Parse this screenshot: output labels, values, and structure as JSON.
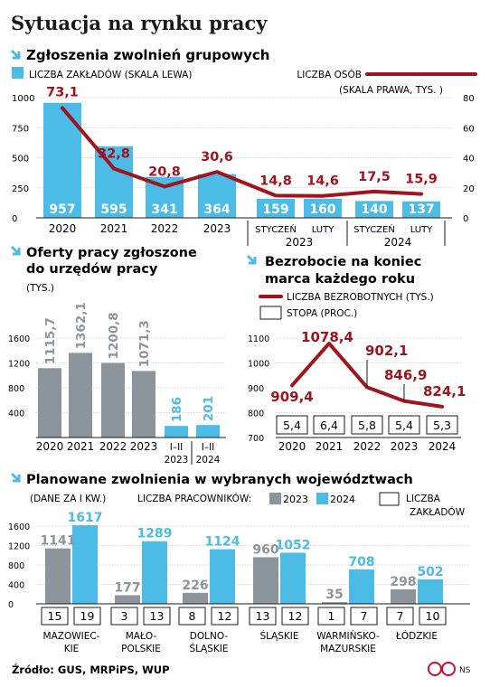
{
  "header": {
    "title": "Sytuacja na rynku pracy"
  },
  "colors": {
    "blue": "#4cbbe6",
    "gray": "#8d959c",
    "red": "#a0141e",
    "text": "#1a1a1a",
    "arrow": "#4cbbe6"
  },
  "section1": {
    "title": "Zgłoszenia zwolnień grupowych",
    "legend_left": "LICZBA ZAKŁADÓW (SKALA LEWA)",
    "legend_right_1": "LICZBA OSÓB",
    "legend_right_2": "(SKALA PRAWA, TYS. )",
    "y_left_ticks": [
      "1000",
      "750",
      "500",
      "250",
      "0"
    ],
    "y_right_ticks": [
      "80",
      "60",
      "40",
      "20",
      "0"
    ],
    "x_labels": [
      "2020",
      "2021",
      "2022",
      "2023",
      "STYCZEŃ",
      "LUTY",
      "STYCZEŃ",
      "LUTY"
    ],
    "group_labels": [
      "2023",
      "2024"
    ]
  },
  "section2": {
    "title_1": "Oferty pracy zgłoszone",
    "title_2": "do urzędów pracy",
    "unit": "(TYS.)",
    "y_ticks": [
      "1600",
      "1200",
      "800",
      "400",
      "0"
    ],
    "x_labels_1": [
      "2020",
      "2021",
      "2022",
      "2023",
      "I–II",
      "I–II"
    ],
    "x_labels_2": [
      "",
      "",
      "",
      "",
      "2023",
      "2024"
    ]
  },
  "section3": {
    "title_1": "Bezrobocie na koniec",
    "title_2": "marca każdego roku",
    "legend_line": "LICZBA BEZROBOTNYCH (TYS.)",
    "legend_box": "STOPA (PROC.)",
    "y_ticks": [
      "1100",
      "1000",
      "900",
      "800",
      "700"
    ],
    "x_labels": [
      "2020",
      "2021",
      "2022",
      "2023",
      "2024"
    ]
  },
  "section4": {
    "title": "Planowane zwolnienia w wybranych województwach",
    "unit": "(DANE ZA I KW.)",
    "legend_workers": "LICZBA PRACOWNIKÓW:",
    "legend_2023": "2023",
    "legend_2024": "2024",
    "legend_plants_1": "LICZBA",
    "legend_plants_2": "ZAKŁADÓW",
    "y_ticks": [
      "1600",
      "1200",
      "800",
      "400",
      "0"
    ],
    "region_labels_1": [
      "MAZOWIEC-",
      "MAŁO-",
      "DOLNO-",
      "ŚLĄSKIE",
      "WARMIŃSKO-",
      "ŁÓDZKIE"
    ],
    "region_labels_2": [
      "KIE",
      "POLSKIE",
      "ŚLĄSKIE",
      "",
      "MAZURSKIE",
      ""
    ]
  },
  "footer": {
    "source": "Źródło: GUS, MRPiPS, WUP",
    "brand": "NS"
  },
  "chart_data": [
    {
      "type": "bar",
      "title": "Zgłoszenia zwolnień grupowych",
      "categories": [
        "2020",
        "2021",
        "2022",
        "2023",
        "STYCZEŃ 2023",
        "LUTY 2023",
        "STYCZEŃ 2024",
        "LUTY 2024"
      ],
      "series": [
        {
          "name": "LICZBA ZAKŁADÓW (SKALA LEWA)",
          "type": "bar",
          "values": [
            957,
            595,
            341,
            364,
            159,
            160,
            140,
            137
          ]
        },
        {
          "name": "LICZBA OSÓB (SKALA PRAWA, TYS. )",
          "type": "line",
          "values": [
            73.1,
            32.8,
            20.8,
            30.6,
            14.8,
            14.6,
            17.5,
            15.9
          ]
        }
      ],
      "value_labels_bar": [
        "957",
        "595",
        "341",
        "364",
        "159",
        "160",
        "140",
        "137"
      ],
      "value_labels_line": [
        "73,1",
        "32,8",
        "20,8",
        "30,6",
        "14,8",
        "14,6",
        "17,5",
        "15,9"
      ],
      "ylim_left": [
        0,
        1000
      ],
      "ylim_right": [
        0,
        80
      ]
    },
    {
      "type": "bar",
      "title": "Oferty pracy zgłoszone do urzędów pracy",
      "ylabel": "(TYS.)",
      "categories": [
        "2020",
        "2021",
        "2022",
        "2023",
        "I–II 2023",
        "I–II 2024"
      ],
      "values": [
        1115.7,
        1362.1,
        1200.8,
        1071.3,
        186,
        201
      ],
      "value_labels": [
        "1115,7",
        "1362,1",
        "1200,8",
        "1071,3",
        "186",
        "201"
      ],
      "ylim": [
        0,
        1600
      ]
    },
    {
      "type": "line",
      "title": "Bezrobocie na koniec marca każdego roku",
      "categories": [
        "2020",
        "2021",
        "2022",
        "2023",
        "2024"
      ],
      "series": [
        {
          "name": "LICZBA BEZROBOTNYCH (TYS.)",
          "values": [
            909.4,
            1078.4,
            902.1,
            846.9,
            824.1
          ]
        },
        {
          "name": "STOPA (PROC.)",
          "values": [
            5.4,
            6.4,
            5.8,
            5.4,
            5.3
          ]
        }
      ],
      "value_labels_line": [
        "909,4",
        "1078,4",
        "902,1",
        "846,9",
        "824,1"
      ],
      "value_labels_rate": [
        "5,4",
        "6,4",
        "5,8",
        "5,4",
        "5,3"
      ],
      "ylim": [
        700,
        1100
      ]
    },
    {
      "type": "bar",
      "title": "Planowane zwolnienia w wybranych województwach",
      "categories": [
        "MAZOWIECKIE",
        "MAŁOPOLSKIE",
        "DOLNOŚLĄSKIE",
        "ŚLĄSKIE",
        "WARMIŃSKO-MAZURSKIE",
        "ŁÓDZKIE"
      ],
      "series": [
        {
          "name": "2023",
          "values": [
            1141,
            177,
            226,
            960,
            35,
            298
          ]
        },
        {
          "name": "2024",
          "values": [
            1617,
            1289,
            1124,
            1052,
            708,
            502
          ]
        }
      ],
      "plants": {
        "2023": [
          "15",
          "3",
          "8",
          "13",
          "1",
          "7"
        ],
        "2024": [
          "19",
          "13",
          "12",
          "12",
          "7",
          "10"
        ]
      },
      "ylim": [
        0,
        1600
      ]
    }
  ]
}
